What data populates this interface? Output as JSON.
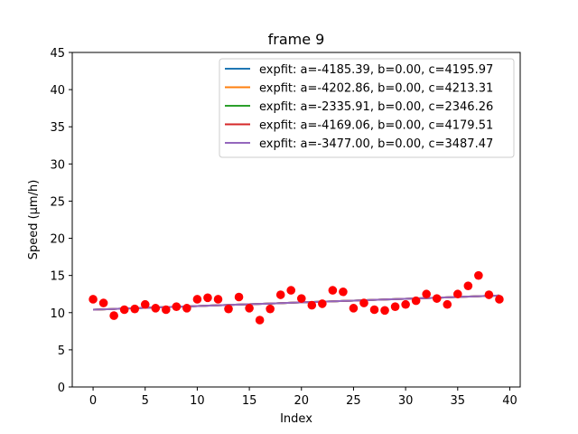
{
  "chart_data": {
    "type": "line",
    "title": "frame 9",
    "xlabel": "Index",
    "ylabel": "Speed (μm/h)",
    "xlim": [
      -2,
      41
    ],
    "ylim": [
      0,
      45
    ],
    "xticks": [
      0,
      5,
      10,
      15,
      20,
      25,
      30,
      35,
      40
    ],
    "yticks": [
      0,
      5,
      10,
      15,
      20,
      25,
      30,
      35,
      40,
      45
    ],
    "grid": false,
    "legend_position": "top-right",
    "scatter": {
      "color": "#ff0000",
      "x": [
        0,
        1,
        2,
        3,
        4,
        5,
        6,
        7,
        8,
        9,
        10,
        11,
        12,
        13,
        14,
        15,
        16,
        17,
        18,
        19,
        20,
        21,
        22,
        23,
        24,
        25,
        26,
        27,
        28,
        29,
        30,
        31,
        32,
        33,
        34,
        35,
        36,
        37,
        38,
        39
      ],
      "y": [
        11.8,
        11.3,
        9.6,
        10.4,
        10.5,
        11.1,
        10.6,
        10.4,
        10.8,
        10.6,
        11.8,
        12.0,
        11.8,
        10.5,
        12.1,
        10.6,
        9.0,
        10.5,
        12.4,
        13.0,
        11.9,
        11.0,
        11.2,
        13.0,
        12.8,
        10.6,
        11.3,
        10.4,
        10.3,
        10.8,
        11.1,
        11.6,
        12.5,
        11.9,
        11.1,
        12.5,
        13.6,
        15.0,
        12.4,
        11.8
      ]
    },
    "series": [
      {
        "name": "expfit: a=-4185.39, b=0.00, c=4195.97",
        "color": "#1f77b4",
        "a": -4185.39,
        "c": 4195.97,
        "y_start": 10.4,
        "y_end": 12.3
      },
      {
        "name": "expfit: a=-4202.86, b=0.00, c=4213.31",
        "color": "#ff7f0e",
        "a": -4202.86,
        "c": 4213.31,
        "y_start": 10.4,
        "y_end": 12.3
      },
      {
        "name": "expfit: a=-2335.91, b=0.00, c=2346.26",
        "color": "#2ca02c",
        "a": -2335.91,
        "c": 2346.26,
        "y_start": 10.4,
        "y_end": 12.3
      },
      {
        "name": "expfit: a=-4169.06, b=0.00, c=4179.51",
        "color": "#d62728",
        "a": -4169.06,
        "c": 4179.51,
        "y_start": 10.4,
        "y_end": 12.3
      },
      {
        "name": "expfit: a=-3477.00, b=0.00, c=3487.47",
        "color": "#9467bd",
        "a": -3477.0,
        "c": 3487.47,
        "y_start": 10.4,
        "y_end": 12.3
      }
    ]
  }
}
